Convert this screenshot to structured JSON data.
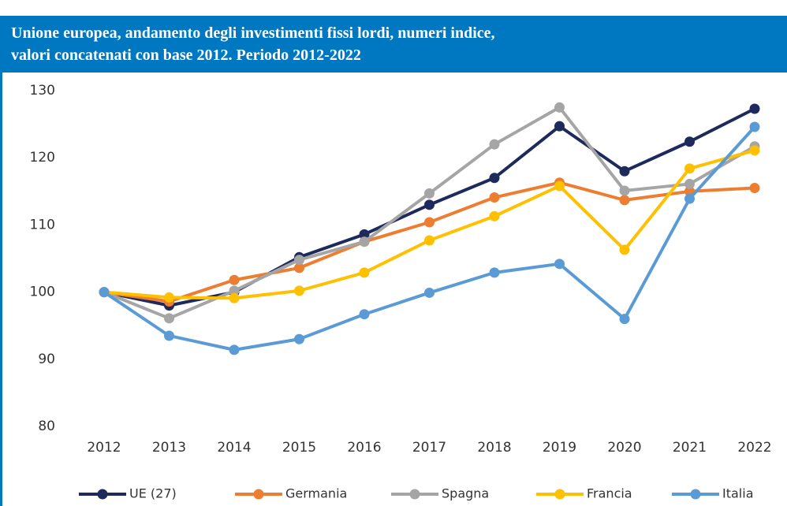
{
  "chart_data": {
    "type": "line",
    "title_lines": [
      "Unione europea, andamento degli investimenti fissi lordi, numeri indice,",
      "valori concatenati con base 2012. Periodo 2012-2022"
    ],
    "categories": [
      "2012",
      "2013",
      "2014",
      "2015",
      "2016",
      "2017",
      "2018",
      "2019",
      "2020",
      "2021",
      "2022"
    ],
    "series": [
      {
        "name": "UE (27)",
        "color": "#1f2a5c",
        "values": [
          100,
          98,
          100,
          105.2,
          108.6,
          113,
          117,
          124.7,
          118,
          122.4,
          127.3
        ]
      },
      {
        "name": "Germania",
        "color": "#ed7d31",
        "values": [
          100,
          98.6,
          101.8,
          103.6,
          107.5,
          110.4,
          114.1,
          116.3,
          113.7,
          115,
          115.5
        ]
      },
      {
        "name": "Spagna",
        "color": "#a5a5a5",
        "values": [
          100,
          96.1,
          100.2,
          104.8,
          107.5,
          114.7,
          122,
          127.5,
          115.1,
          116.1,
          121.7
        ]
      },
      {
        "name": "Francia",
        "color": "#ffc000",
        "values": [
          100,
          99.2,
          99.1,
          100.2,
          102.9,
          107.7,
          111.3,
          115.8,
          106.3,
          118.4,
          121.1
        ]
      },
      {
        "name": "Italia",
        "color": "#5b9bd5",
        "values": [
          100,
          93.5,
          91.4,
          93,
          96.7,
          99.9,
          102.9,
          104.2,
          96,
          113.9,
          124.6
        ]
      }
    ],
    "ylim": [
      80,
      130
    ],
    "yticks": [
      80,
      90,
      100,
      110,
      120,
      130
    ],
    "grid": false,
    "legend": "bottom"
  }
}
